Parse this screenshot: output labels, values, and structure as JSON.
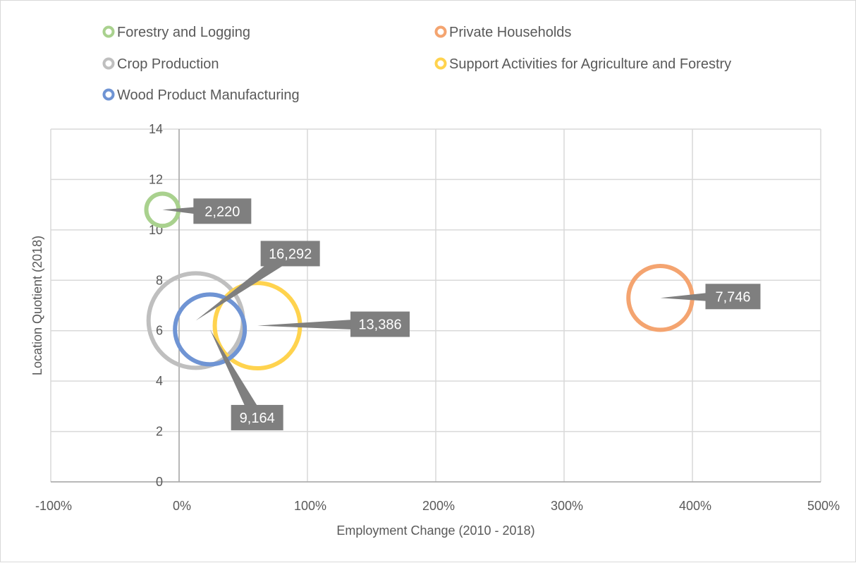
{
  "chart_data": {
    "type": "bubble",
    "title": "",
    "xlabel": "Employment Change (2010 - 2018)",
    "ylabel": "Location Quotient (2018)",
    "xlim": [
      -1,
      5
    ],
    "ylim": [
      0,
      14
    ],
    "x_ticks": [
      -1,
      0,
      1,
      2,
      3,
      4,
      5
    ],
    "x_tick_labels": [
      "-100%",
      "0%",
      "100%",
      "200%",
      "300%",
      "400%",
      "500%"
    ],
    "y_ticks": [
      0,
      2,
      4,
      6,
      8,
      10,
      12,
      14
    ],
    "y_tick_labels": [
      "0",
      "2",
      "4",
      "6",
      "8",
      "10",
      "12",
      "14"
    ],
    "grid": true,
    "legend_position": "top",
    "series": [
      {
        "name": "Forestry and Logging",
        "color": "#a9d18e",
        "x": -0.13,
        "y": 10.8,
        "size": 2220,
        "label": "2,220"
      },
      {
        "name": "Private Households",
        "color": "#f4a470",
        "x": 3.75,
        "y": 7.3,
        "size": 7746,
        "label": "7,746"
      },
      {
        "name": "Crop Production",
        "color": "#bfbfbf",
        "x": 0.13,
        "y": 6.4,
        "size": 16292,
        "label": "16,292"
      },
      {
        "name": "Support Activities for Agriculture and Forestry",
        "color": "#ffd34e",
        "x": 0.61,
        "y": 6.2,
        "size": 13386,
        "label": "13,386"
      },
      {
        "name": "Wood Product Manufacturing",
        "color": "#6f94d4",
        "x": 0.24,
        "y": 6.05,
        "size": 9164,
        "label": "9,164"
      }
    ]
  }
}
